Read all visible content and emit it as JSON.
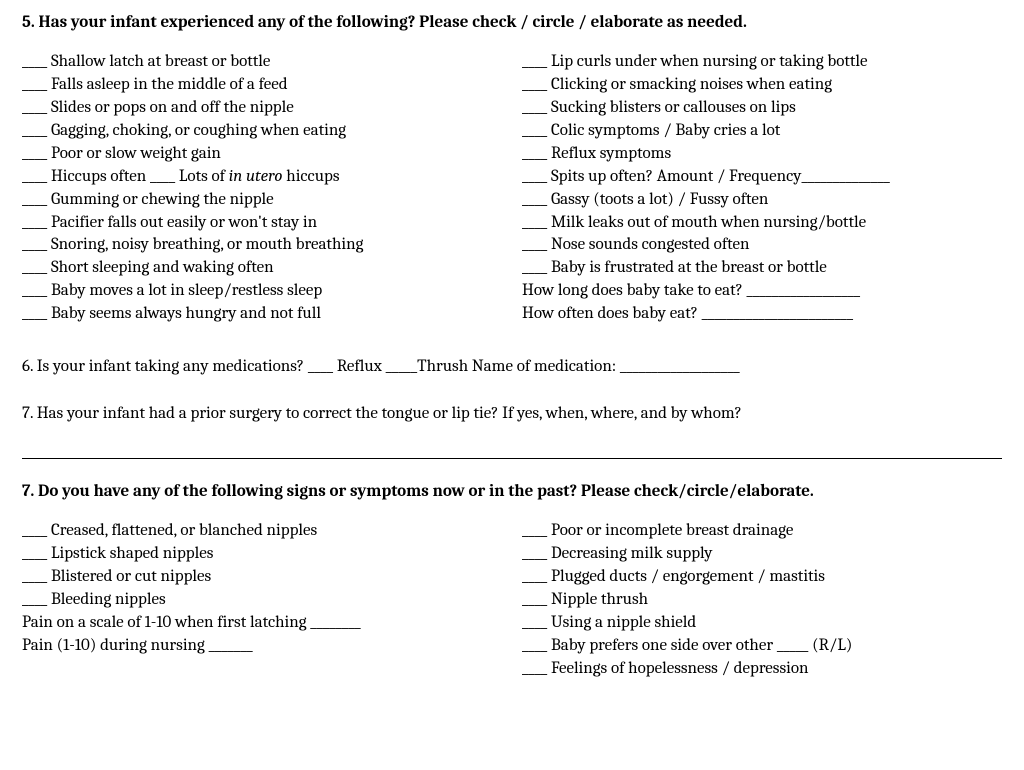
{
  "q5": {
    "title": "5. Has your infant experienced any of the following? Please check / circle / elaborate as needed.",
    "left": [
      {
        "text": "Shallow latch at breast or bottle"
      },
      {
        "text": "Falls asleep in the middle of a feed"
      },
      {
        "text": "Slides or pops on and off the nipple"
      },
      {
        "text": "Gagging, choking, or coughing when eating"
      },
      {
        "text": "Poor or slow weight gain"
      },
      {
        "text": "Hiccups often",
        "extra": "Lots of ",
        "italic": "in utero",
        "after": " hiccups"
      },
      {
        "text": "Gumming or chewing the nipple"
      },
      {
        "text": "Pacifier falls out easily or won't stay in"
      },
      {
        "text": "Snoring, noisy breathing, or mouth breathing"
      },
      {
        "text": "Short sleeping and waking often"
      },
      {
        "text": "Baby moves a lot in sleep/restless sleep"
      },
      {
        "text": "Baby seems always hungry and not full"
      }
    ],
    "right": [
      {
        "text": "Lip curls under when nursing or taking bottle"
      },
      {
        "text": "Clicking or smacking noises when eating"
      },
      {
        "text": "Sucking blisters or callouses on lips"
      },
      {
        "text": "Colic symptoms / Baby cries a lot"
      },
      {
        "text": "Reflux symptoms"
      },
      {
        "text": "Spits up often? Amount / Frequency",
        "trail": "______________"
      },
      {
        "text": "Gassy (toots a lot) / Fussy often"
      },
      {
        "text": "Milk leaks out of mouth when nursing/bottle"
      },
      {
        "text": "Nose sounds congested often"
      },
      {
        "text": "Baby is frustrated at the breast or bottle"
      }
    ],
    "rfree": [
      {
        "label": "How long does baby take to eat? ",
        "trail": "__________________"
      },
      {
        "label": "How often does baby eat? ",
        "trail": "________________________"
      }
    ]
  },
  "q6": {
    "text1": "6. Is your infant taking any medications? ",
    "opt1": " Reflux ",
    "opt2": "Thrush   Name of medication: ",
    "trail": "___________________"
  },
  "q7a": {
    "text": "7. Has your infant had a prior surgery to correct the tongue or lip tie? If yes, when, where, and by whom?"
  },
  "q7b": {
    "title": "7. Do you have any of the following signs or symptoms now or in the past? Please check/circle/elaborate.",
    "left": [
      {
        "blank": true,
        "text": "Creased, flattened, or blanched nipples"
      },
      {
        "blank": true,
        "text": "Lipstick shaped nipples"
      },
      {
        "blank": true,
        "text": "Blistered or cut nipples"
      },
      {
        "blank": true,
        "text": "Bleeding nipples"
      },
      {
        "free": true,
        "text": "Pain on a scale of 1-10 when first latching ",
        "trail": "________"
      },
      {
        "free": true,
        "text": "Pain (1-10) during nursing ",
        "trail": "_______"
      }
    ],
    "right": [
      {
        "blank": true,
        "text": "Poor or incomplete breast drainage"
      },
      {
        "blank": true,
        "text": "Decreasing milk supply"
      },
      {
        "blank": true,
        "text": "Plugged ducts / engorgement / mastitis"
      },
      {
        "blank": true,
        "text": "Nipple thrush"
      },
      {
        "blank": true,
        "text": "Using a nipple shield"
      },
      {
        "blank": true,
        "text": "Baby prefers one side over other  ",
        "trail": "_____ (R/L)"
      },
      {
        "blank": true,
        "text": "Feelings of hopelessness / depression"
      }
    ]
  },
  "blanks": {
    "short": "____ ",
    "short2": "____",
    "med": "_____"
  }
}
